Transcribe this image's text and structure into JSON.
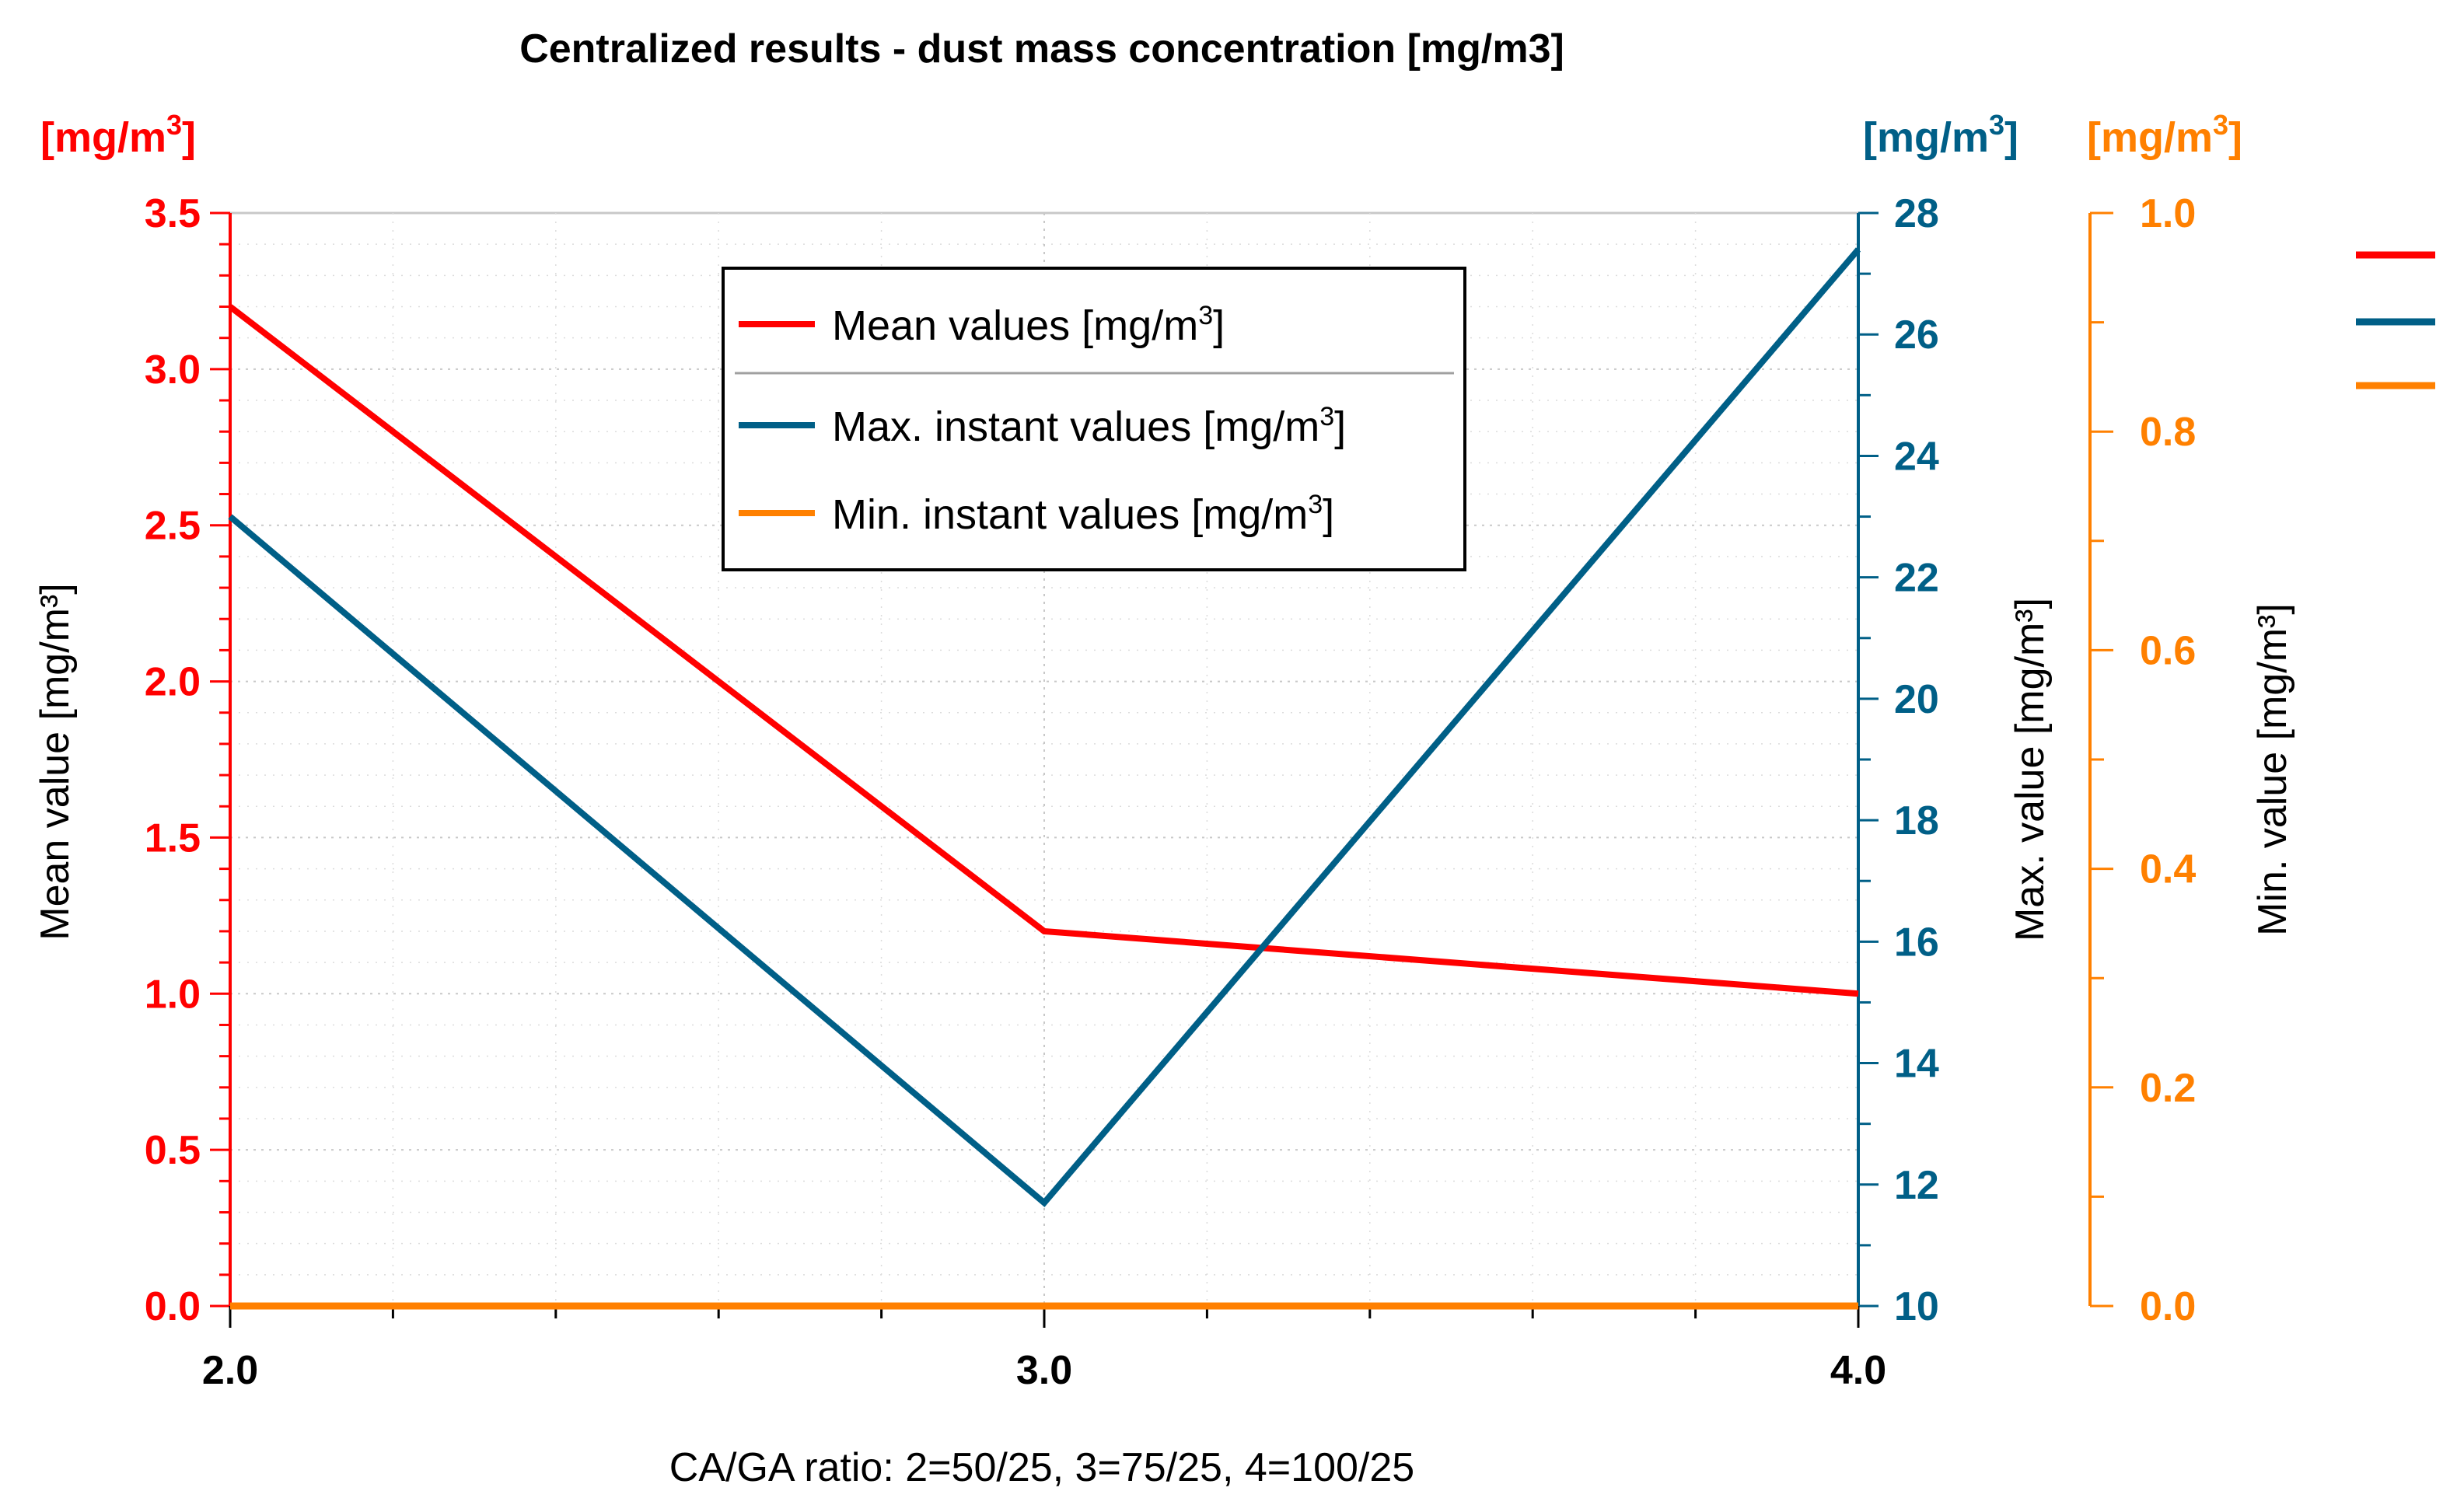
{
  "chart_data": {
    "type": "line",
    "title": "Centralized results - dust mass concentration [mg/m3]",
    "xlabel": "CA/GA ratio: 2=50/25, 3=75/25, 4=100/25",
    "x": [
      2.0,
      3.0,
      4.0
    ],
    "x_tick_labels": [
      "2.0",
      "3.0",
      "4.0"
    ],
    "xlim": [
      2.0,
      4.0
    ],
    "axes": {
      "mean": {
        "label": "Mean value [mg/m³]",
        "unit_base": "[mg/m",
        "unit_sup": "3",
        "unit_end": "]",
        "ylim": [
          0,
          3.5
        ],
        "ticks": [
          "0.0",
          "0.5",
          "1.0",
          "1.5",
          "2.0",
          "2.5",
          "3.0",
          "3.5"
        ],
        "color": "#ff0000"
      },
      "max": {
        "label": "Max. value [mg/m³]",
        "unit_base": "[mg/m",
        "unit_sup": "3",
        "unit_end": "]",
        "ylim": [
          10,
          28
        ],
        "ticks": [
          "10",
          "12",
          "14",
          "16",
          "18",
          "20",
          "22",
          "24",
          "26",
          "28"
        ],
        "color": "#005f87"
      },
      "min": {
        "label": "Min. value [mg/m³]",
        "unit_base": "[mg/m",
        "unit_sup": "3",
        "unit_end": "]",
        "ylim": [
          0,
          1.0
        ],
        "ticks": [
          "0.0",
          "0.2",
          "0.4",
          "0.6",
          "0.8",
          "1.0"
        ],
        "color": "#ff8000"
      }
    },
    "series": [
      {
        "name": "Mean values [mg/m³]",
        "legend_base": "Mean values [mg/m",
        "legend_end": "]",
        "axis": "mean",
        "values": [
          3.2,
          1.2,
          1.0
        ],
        "color": "#ff0000"
      },
      {
        "name": "Max. instant values [mg/m³]",
        "legend_base": "Max. instant values [mg/m",
        "legend_end": "]",
        "axis": "max",
        "values": [
          23.0,
          11.7,
          27.4
        ],
        "color": "#005f87"
      },
      {
        "name": "Min. instant values [mg/m³]",
        "legend_base": "Min. instant values [mg/m",
        "legend_end": "]",
        "axis": "min",
        "values": [
          0.0,
          0.0,
          0.0
        ],
        "color": "#ff8000"
      }
    ],
    "legend_placement": "top-center",
    "grid": true
  }
}
